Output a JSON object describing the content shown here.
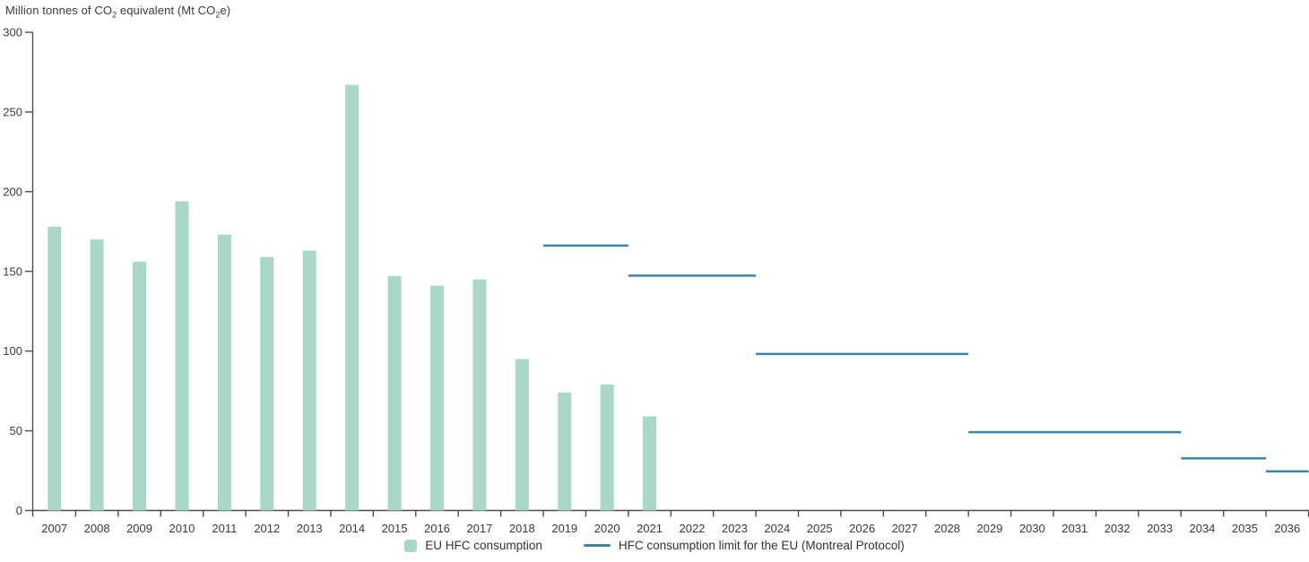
{
  "title": {
    "pre": "Million tonnes of CO",
    "sub1": "2",
    "mid": " equivalent (Mt CO",
    "sub2": "2",
    "post": "e)"
  },
  "legend": {
    "bars_label": "EU HFC consumption",
    "line_label": "HFC consumption limit for the EU (Montreal Protocol)"
  },
  "colors": {
    "bar": "#a9d8c8",
    "line": "#3d84ad",
    "axis": "#4d4d4d",
    "text": "#3c3c3c"
  },
  "chart_data": {
    "type": "bar",
    "title": "Million tonnes of CO2 equivalent (Mt CO2e)",
    "categories": [
      "2007",
      "2008",
      "2009",
      "2010",
      "2011",
      "2012",
      "2013",
      "2014",
      "2015",
      "2016",
      "2017",
      "2018",
      "2019",
      "2020",
      "2021",
      "2022",
      "2023",
      "2024",
      "2025",
      "2026",
      "2027",
      "2028",
      "2029",
      "2030",
      "2031",
      "2032",
      "2033",
      "2034",
      "2035",
      "2036"
    ],
    "yticks": [
      0,
      50,
      100,
      150,
      200,
      250,
      300
    ],
    "ylim": [
      0,
      300
    ],
    "grid": false,
    "legend_position": "bottom",
    "series": [
      {
        "name": "EU HFC consumption",
        "type": "bar",
        "categories": [
          "2007",
          "2008",
          "2009",
          "2010",
          "2011",
          "2012",
          "2013",
          "2014",
          "2015",
          "2016",
          "2017",
          "2018",
          "2019",
          "2020",
          "2021"
        ],
        "values": [
          178,
          170,
          156,
          194,
          173,
          159,
          163,
          267,
          147,
          141,
          145,
          95,
          74,
          79,
          59
        ]
      },
      {
        "name": "HFC consumption limit for the EU (Montreal Protocol)",
        "type": "step-line-segments",
        "segments": [
          {
            "from": "2019",
            "to": "2020",
            "value": 166.2
          },
          {
            "from": "2021",
            "to": "2023",
            "value": 147.3
          },
          {
            "from": "2024",
            "to": "2028",
            "value": 98.2
          },
          {
            "from": "2029",
            "to": "2033",
            "value": 49.1
          },
          {
            "from": "2034",
            "to": "2035",
            "value": 32.7
          },
          {
            "from": "2036",
            "to": "2036",
            "value": 24.5
          }
        ]
      }
    ]
  }
}
